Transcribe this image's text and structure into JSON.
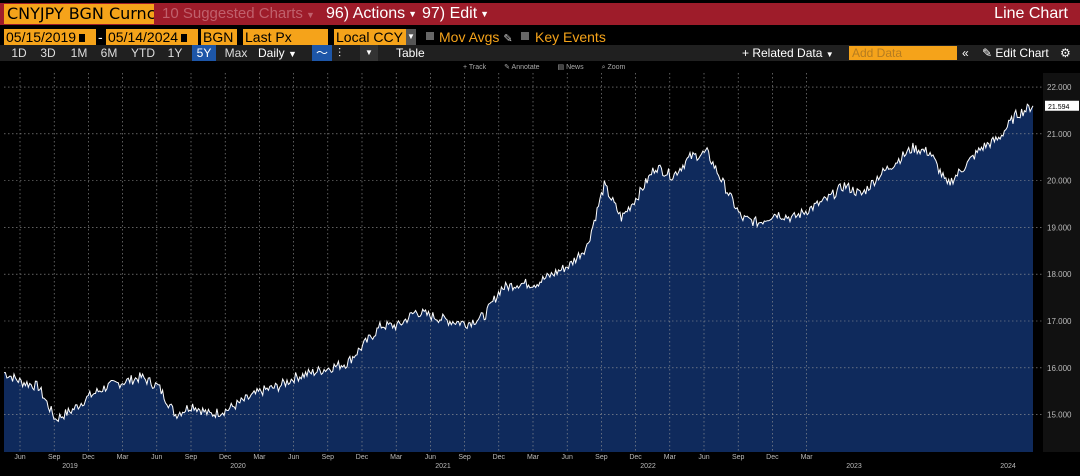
{
  "toolbar": {
    "ticker": "CNYJPY BGN Curncy",
    "suggested": "10 Suggested Charts",
    "actions": "96) Actions",
    "edit": "97) Edit",
    "chart_type": "Line Chart"
  },
  "params": {
    "start_date": "05/15/2019",
    "dash": "-",
    "end_date": "05/14/2024",
    "source": "BGN",
    "field": "Last Px",
    "currency": "Local CCY",
    "mov_avgs": "Mov Avgs",
    "key_events": "Key Events"
  },
  "ranges": [
    "1D",
    "3D",
    "1M",
    "6M",
    "YTD",
    "1Y",
    "5Y",
    "Max"
  ],
  "selected_range": "5Y",
  "frequency": "Daily",
  "table_label": "Table",
  "related_data": "+ Related Data",
  "add_data_placeholder": "Add Data",
  "edit_chart": "Edit Chart",
  "chart_tools": [
    "Track",
    "Annotate",
    "News",
    "Zoom"
  ],
  "colors": {
    "accent": "#f5a31a",
    "header_red": "#9e1c2a",
    "area_fill": "#0f2a5c",
    "line": "#ffffff",
    "selected": "#1d56a8"
  },
  "chart_data": {
    "type": "area",
    "last_value": "21.594",
    "y_ticks": [
      "22.000",
      "21.000",
      "20.000",
      "19.000",
      "18.000",
      "17.000",
      "16.000",
      "15.000"
    ],
    "ylim": [
      14.2,
      22.3
    ],
    "x_month_ticks": [
      "Jun",
      "Sep",
      "Dec",
      "Mar",
      "Jun",
      "Sep",
      "Dec",
      "Mar",
      "Jun",
      "Sep",
      "Dec",
      "Mar",
      "Jun",
      "Sep",
      "Dec",
      "Mar",
      "Jun",
      "Sep",
      "Dec",
      "Mar",
      "Jun",
      "Sep",
      "Dec",
      "Mar"
    ],
    "x_year_ticks": [
      "2019",
      "2020",
      "2021",
      "2022",
      "2023",
      "2024"
    ],
    "series": [
      {
        "x": [
          "2019-05",
          "2019-06",
          "2019-07",
          "2019-08",
          "2019-09",
          "2019-10",
          "2019-11",
          "2019-12",
          "2020-01",
          "2020-02",
          "2020-03",
          "2020-04",
          "2020-05",
          "2020-06",
          "2020-07",
          "2020-08",
          "2020-09",
          "2020-10",
          "2020-11",
          "2020-12",
          "2021-01",
          "2021-02",
          "2021-03",
          "2021-04",
          "2021-05",
          "2021-06",
          "2021-07",
          "2021-08",
          "2021-09",
          "2021-10",
          "2021-11",
          "2021-12",
          "2022-01",
          "2022-02",
          "2022-03",
          "2022-04",
          "2022-05",
          "2022-06",
          "2022-07",
          "2022-08",
          "2022-09",
          "2022-10",
          "2022-11",
          "2022-12",
          "2023-01",
          "2023-02",
          "2023-03",
          "2023-04",
          "2023-05",
          "2023-06",
          "2023-07",
          "2023-08",
          "2023-09",
          "2023-10",
          "2023-11",
          "2023-12",
          "2024-01",
          "2024-02",
          "2024-03",
          "2024-04",
          "2024-05"
        ],
        "values": [
          15.9,
          15.7,
          15.6,
          14.9,
          15.1,
          15.4,
          15.6,
          15.7,
          15.8,
          15.6,
          15.0,
          15.2,
          15.0,
          15.1,
          15.3,
          15.5,
          15.6,
          15.8,
          15.9,
          16.0,
          16.1,
          16.5,
          16.9,
          16.9,
          17.2,
          17.1,
          17.0,
          16.95,
          17.1,
          17.7,
          17.8,
          17.8,
          18.0,
          18.2,
          18.6,
          19.9,
          19.2,
          19.7,
          20.3,
          20.1,
          20.5,
          20.6,
          19.9,
          19.2,
          19.1,
          19.3,
          19.2,
          19.4,
          19.6,
          19.9,
          19.7,
          20.1,
          20.4,
          20.7,
          20.6,
          19.9,
          20.3,
          20.7,
          20.9,
          21.4,
          21.6
        ]
      }
    ]
  }
}
